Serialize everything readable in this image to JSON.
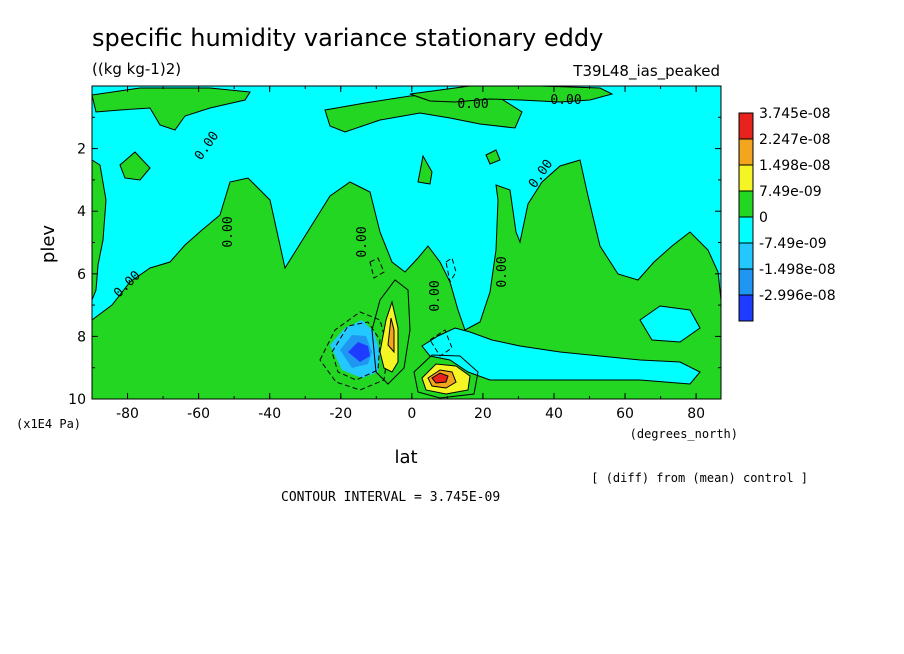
{
  "chart_data": {
    "type": "contour",
    "title": "specific humidity variance stationary eddy",
    "units": "((kg kg-1)2)",
    "run_label": "T39L48_ias_peaked",
    "xlabel": "lat",
    "x_units": "(degrees_north)",
    "ylabel": "plev",
    "y_units": "(x1E4 Pa)",
    "xlim": [
      -90,
      87
    ],
    "ylim": [
      10,
      0
    ],
    "x_ticks": [
      "-80",
      "-60",
      "-40",
      "-20",
      "0",
      "20",
      "40",
      "60",
      "80"
    ],
    "y_ticks": [
      "2",
      "4",
      "6",
      "8",
      "10"
    ],
    "note": "[ (diff) from (mean) control ]",
    "contour_interval": "CONTOUR INTERVAL = 3.745E-09",
    "contour_labels": [
      "0.00",
      "0.00",
      "0.00",
      "0.00",
      "0.00",
      "0.00",
      "0.00",
      "0.00",
      "0.00"
    ],
    "legend": {
      "labels": [
        "3.745e-08",
        "2.247e-08",
        "1.498e-08",
        "7.49e-09",
        "0",
        "-7.49e-09",
        "-1.498e-08",
        "-2.996e-08"
      ],
      "colors": [
        "#e8231e",
        "#f2a51d",
        "#f5f526",
        "#22d622",
        "#00ffff",
        "#22c8ff",
        "#1e96f2",
        "#1e3cff"
      ]
    },
    "background_color": "#00ffff",
    "positive_color": "#22d622"
  }
}
